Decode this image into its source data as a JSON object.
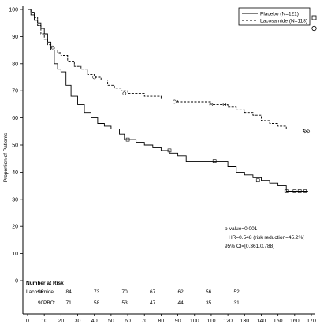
{
  "chart_data": {
    "type": "line",
    "subtype": "kaplan-meier",
    "ylabel": "Proportion of Patients",
    "xlabel": "",
    "xlim": [
      0,
      170
    ],
    "ylim": [
      0,
      100
    ],
    "x_ticks": [
      0,
      10,
      20,
      30,
      40,
      50,
      60,
      70,
      80,
      90,
      100,
      110,
      120,
      130,
      140,
      150,
      160,
      170
    ],
    "y_ticks": [
      0,
      10,
      20,
      30,
      40,
      50,
      60,
      70,
      80,
      90,
      100
    ],
    "grid": false,
    "legend_position": "top-right",
    "series": [
      {
        "name": "Placebo (N=121)",
        "style": "solid",
        "x": [
          0,
          2,
          4,
          6,
          8,
          10,
          12,
          14,
          16,
          18,
          20,
          23,
          26,
          30,
          34,
          38,
          42,
          46,
          50,
          55,
          58,
          60,
          65,
          70,
          75,
          80,
          85,
          90,
          95,
          100,
          105,
          110,
          115,
          120,
          125,
          130,
          135,
          140,
          145,
          150,
          155,
          160,
          165,
          168
        ],
        "y": [
          100,
          98,
          96,
          95,
          93,
          91,
          88,
          85,
          80,
          78,
          77,
          72,
          68,
          65,
          62,
          60,
          58,
          57,
          56,
          54,
          52,
          52,
          51,
          50,
          49,
          48,
          47,
          46,
          44,
          44,
          44,
          44,
          44,
          42,
          40,
          39,
          38,
          37,
          36,
          35,
          33,
          33,
          33,
          33
        ],
        "censor_x": [
          60,
          85,
          112,
          138,
          155,
          160,
          163,
          166
        ],
        "censor_y": [
          52,
          48,
          44,
          37,
          33,
          33,
          33,
          33
        ]
      },
      {
        "name": "Lacosamide (N=118)",
        "style": "dashed",
        "x": [
          0,
          2,
          4,
          6,
          8,
          10,
          12,
          14,
          16,
          18,
          20,
          24,
          28,
          32,
          36,
          40,
          44,
          48,
          52,
          56,
          60,
          65,
          70,
          80,
          90,
          100,
          110,
          115,
          120,
          125,
          130,
          135,
          140,
          145,
          150,
          155,
          160,
          165,
          168
        ],
        "y": [
          100,
          99,
          97,
          94,
          91,
          89,
          87,
          86,
          85,
          84,
          83,
          81,
          79,
          78,
          76,
          75,
          74,
          72,
          71,
          70,
          69,
          69,
          68,
          67,
          66,
          66,
          65,
          65,
          64,
          63,
          62,
          61,
          59,
          58,
          57,
          56,
          56,
          55,
          55
        ],
        "censor_x": [
          15,
          40,
          58,
          88,
          110,
          118,
          166,
          168
        ],
        "censor_y": [
          86,
          75,
          69,
          66,
          65,
          65,
          55,
          55
        ]
      }
    ],
    "number_at_risk": {
      "title": "Number at Risk",
      "rows": [
        {
          "label": "Lacosamide",
          "values": [
            "96",
            "84",
            "73",
            "70",
            "67",
            "62",
            "56",
            "52"
          ]
        },
        {
          "label": "PBO:",
          "values": [
            "90",
            "71",
            "58",
            "53",
            "47",
            "44",
            "35",
            "31"
          ]
        }
      ]
    },
    "annotations": [
      "p-value=0.001",
      "HR=0.548 (risk reduction=45.2%)",
      "95% CI=[0.361,0.788]"
    ]
  }
}
